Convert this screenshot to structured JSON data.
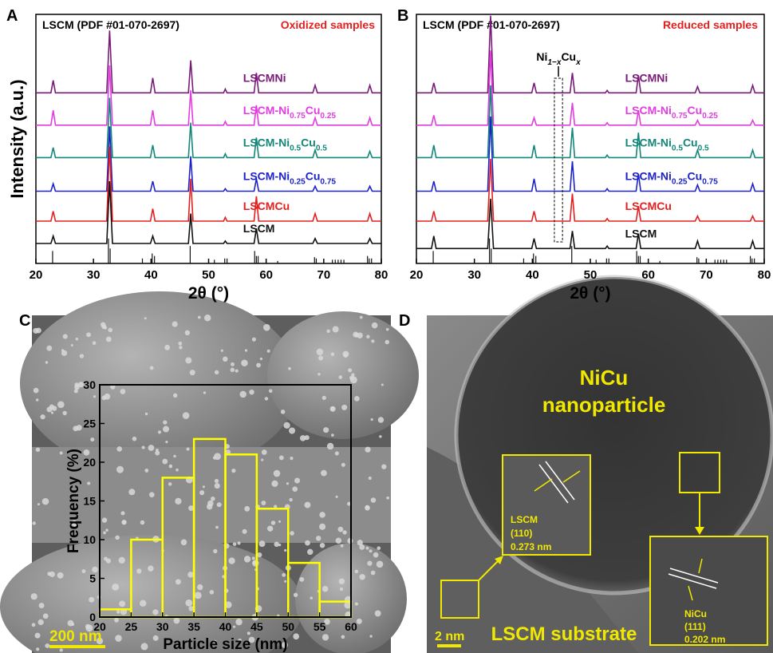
{
  "panels": [
    "A",
    "B",
    "C",
    "D"
  ],
  "chart_data": [
    {
      "type": "line",
      "title": "LSCM (PDF #01-070-2697)",
      "subtitle": "Oxidized samples",
      "subtitle_color": "#e3201f",
      "xlabel": "2θ (°)",
      "ylabel": "Intensity (a.u.)",
      "xlim": [
        20,
        80
      ],
      "xticks": [
        20,
        30,
        40,
        50,
        60,
        70,
        80
      ],
      "ylim": [
        0,
        100
      ],
      "x": [
        20,
        22.6,
        23.0,
        23.4,
        32.3,
        32.8,
        33.3,
        39.9,
        40.3,
        40.7,
        46.5,
        46.9,
        47.3,
        52.6,
        52.9,
        53.2,
        57.9,
        58.3,
        58.7,
        68.1,
        68.5,
        68.9,
        77.6,
        78.0,
        78.4,
        80
      ],
      "series": [
        {
          "name": "LSCMNi",
          "color": "#7a1a78",
          "values": [
            68.5,
            68.5,
            73.5,
            68.5,
            68.5,
            93.5,
            68.5,
            68.5,
            74.5,
            68.5,
            68.5,
            81.5,
            68.5,
            68.5,
            70,
            68.5,
            68.5,
            76.5,
            68.5,
            68.5,
            71.5,
            68.5,
            68.5,
            71.5,
            68.5,
            68.5
          ]
        },
        {
          "name": "LSCM-Ni0.75Cu0.25",
          "color": "#e23de0",
          "values": [
            55.5,
            55.5,
            61.5,
            55.5,
            55.5,
            79.5,
            55.5,
            55.5,
            61.5,
            55.5,
            55.5,
            69.5,
            55.5,
            55.5,
            57,
            55.5,
            55.5,
            63.5,
            55.5,
            55.5,
            58.5,
            55.5,
            55.5,
            58.5,
            55.5,
            55.5
          ]
        },
        {
          "name": "LSCM-Ni0.5Cu0.5",
          "color": "#13877a",
          "values": [
            42.5,
            42.5,
            46.5,
            42.5,
            42.5,
            66.5,
            42.5,
            42.5,
            47.5,
            42.5,
            42.5,
            56.5,
            42.5,
            42.5,
            44,
            42.5,
            42.5,
            50.5,
            42.5,
            42.5,
            45.5,
            42.5,
            42.5,
            45,
            42.5,
            42.5
          ]
        },
        {
          "name": "LSCM-Ni0.25Cu0.75",
          "color": "#1c22c8",
          "values": [
            29,
            29,
            32,
            29,
            29,
            55,
            29,
            29,
            33,
            29,
            29,
            43,
            29,
            29,
            30,
            29,
            29,
            34,
            29,
            29,
            31,
            29,
            29,
            31,
            29,
            29
          ]
        },
        {
          "name": "LSCMCu",
          "color": "#e3201f",
          "values": [
            17,
            17,
            21,
            17,
            17,
            47,
            17,
            17,
            22,
            17,
            17,
            34,
            17,
            17,
            18.5,
            17,
            17,
            27,
            17,
            17,
            20,
            17,
            17,
            20,
            17,
            17
          ]
        },
        {
          "name": "LSCM",
          "color": "#111111",
          "values": [
            8,
            8,
            11,
            8,
            8,
            33,
            8,
            8,
            11,
            8,
            8,
            20,
            8,
            8,
            9,
            8,
            8,
            14,
            8,
            8,
            10,
            8,
            8,
            10,
            8,
            8
          ]
        }
      ],
      "reference": {
        "color": "#111111",
        "x": [
          22.9,
          32.6,
          32.9,
          38.5,
          40.2,
          40.6,
          46.8,
          51.0,
          52.8,
          53.2,
          58.0,
          58.3,
          58.6,
          62.0,
          68.4,
          68.7,
          71.5,
          72.0,
          72.5,
          73.0,
          73.5,
          77.6,
          77.9,
          78.3
        ],
        "values": [
          5,
          10,
          6,
          2,
          4,
          3,
          7,
          1.5,
          2,
          2,
          5,
          3,
          3,
          1,
          2.5,
          2,
          1.5,
          1.5,
          1.5,
          1.5,
          1.5,
          3,
          2,
          2
        ]
      }
    },
    {
      "type": "line",
      "title": "LSCM (PDF #01-070-2697)",
      "subtitle": "Reduced samples",
      "subtitle_color": "#e3201f",
      "xlabel": "2θ (°)",
      "xlim": [
        20,
        80
      ],
      "xticks": [
        20,
        30,
        40,
        50,
        60,
        70,
        80
      ],
      "ylim": [
        0,
        100
      ],
      "x": [
        20,
        22.6,
        23.0,
        23.4,
        32.3,
        32.8,
        33.3,
        39.9,
        40.3,
        40.7,
        46.5,
        46.9,
        47.3,
        52.6,
        52.9,
        53.2,
        57.9,
        58.3,
        58.7,
        68.1,
        68.5,
        68.9,
        77.6,
        78.0,
        78.4,
        80
      ],
      "series": [
        {
          "name": "LSCMNi",
          "color": "#7a1a78",
          "values": [
            68.5,
            68.5,
            72.5,
            68.5,
            68.5,
            99.5,
            68.5,
            68.5,
            72.5,
            68.5,
            68.5,
            76.5,
            68.5,
            68.5,
            69.5,
            68.5,
            68.5,
            75.5,
            68.5,
            68.5,
            71,
            68.5,
            68.5,
            71.5,
            68.5,
            68.5
          ]
        },
        {
          "name": "LSCM-Ni0.75Cu0.25",
          "color": "#e23de0",
          "values": [
            55.5,
            55.5,
            59.5,
            55.5,
            55.5,
            85.5,
            55.5,
            55.5,
            58.5,
            55.5,
            55.5,
            64.5,
            55.5,
            55.5,
            56.5,
            55.5,
            55.5,
            61.5,
            55.5,
            55.5,
            57.5,
            55.5,
            55.5,
            57.5,
            55.5,
            55.5
          ]
        },
        {
          "name": "LSCM-Ni0.5Cu0.5",
          "color": "#13877a",
          "values": [
            42.5,
            42.5,
            47.5,
            42.5,
            42.5,
            71.5,
            42.5,
            42.5,
            47.5,
            42.5,
            42.5,
            54.5,
            42.5,
            42.5,
            43.5,
            42.5,
            42.5,
            52.5,
            42.5,
            42.5,
            45.5,
            42.5,
            42.5,
            45.5,
            42.5,
            42.5
          ]
        },
        {
          "name": "LSCM-Ni0.25Cu0.75",
          "color": "#1c22c8",
          "values": [
            29,
            29,
            33,
            29,
            29,
            59,
            29,
            29,
            34,
            29,
            29,
            41,
            29,
            29,
            30,
            29,
            29,
            36,
            29,
            29,
            31.5,
            29,
            29,
            32,
            29,
            29
          ]
        },
        {
          "name": "LSCMCu",
          "color": "#e3201f",
          "values": [
            17,
            17,
            21,
            17,
            17,
            42,
            17,
            17,
            21,
            17,
            17,
            28,
            17,
            17,
            18,
            17,
            17,
            23,
            17,
            17,
            19,
            17,
            17,
            19,
            17,
            17
          ]
        },
        {
          "name": "LSCM",
          "color": "#111111",
          "values": [
            6,
            6,
            11,
            6,
            6,
            26,
            6,
            6,
            10,
            6,
            6,
            13,
            6,
            6,
            7,
            6,
            6,
            12,
            6,
            6,
            9,
            6,
            6,
            9,
            6,
            6
          ]
        }
      ],
      "reference": {
        "color": "#111111",
        "x": [
          22.9,
          32.6,
          32.9,
          38.5,
          40.2,
          40.6,
          46.8,
          51.0,
          52.8,
          53.2,
          58.0,
          58.3,
          58.6,
          62.0,
          68.4,
          68.7,
          71.5,
          72.0,
          72.5,
          73.0,
          73.5,
          77.6,
          77.9,
          78.3
        ],
        "values": [
          5,
          10,
          6,
          2,
          4,
          3,
          7,
          1.5,
          2,
          2,
          5,
          3,
          3,
          1,
          2.5,
          2,
          1.5,
          1.5,
          1.5,
          1.5,
          1.5,
          3,
          2,
          2
        ]
      },
      "annotation": {
        "text": [
          "Ni",
          "1−x",
          "Cu",
          "x"
        ],
        "x": [
          43.8,
          45.2
        ]
      }
    },
    {
      "type": "histogram",
      "xlabel": "Particle size (nm)",
      "ylabel": "Frequency (%)",
      "color": "#ffff00",
      "bins": [
        20,
        25,
        30,
        35,
        40,
        45,
        50,
        55,
        60
      ],
      "values": [
        1,
        10,
        18,
        23,
        21,
        14,
        7,
        2
      ],
      "xlim": [
        20,
        60
      ],
      "xticks": [
        20,
        25,
        30,
        35,
        40,
        45,
        50,
        55,
        60
      ],
      "ylim": [
        0,
        30
      ],
      "yticks": [
        0,
        5,
        10,
        15,
        20,
        25,
        30
      ]
    }
  ],
  "sem_image": {
    "scale_bar": "200 nm"
  },
  "tem_image": {
    "particle_label": [
      "NiCu",
      "nanoparticle"
    ],
    "insets": [
      {
        "lines": [
          "LSCM",
          "(110)",
          "0.273 nm"
        ]
      },
      {
        "lines": [
          "NiCu",
          "(111)",
          "0.202 nm"
        ]
      }
    ],
    "substrate_label": "LSCM substrate",
    "scale_bar": "2 nm"
  }
}
